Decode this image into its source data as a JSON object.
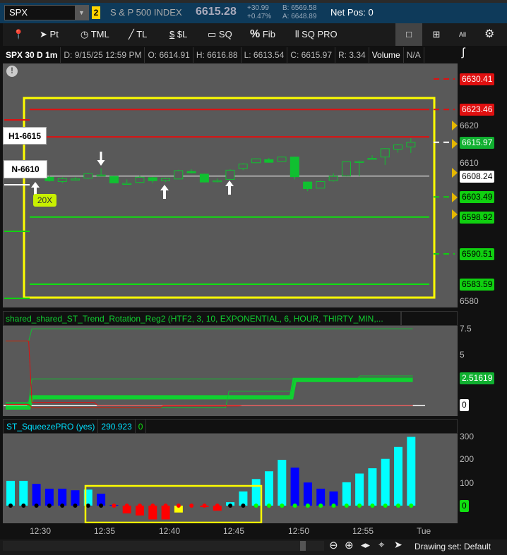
{
  "header": {
    "symbol": "SPX",
    "link_badge": "2",
    "description": "S & P 500 INDEX",
    "last": "6615.28",
    "change": "+30.99",
    "change_pct": "+0.47%",
    "bid": "B: 6569.58",
    "ask": "A: 6648.89",
    "net_pos": "Net Pos: 0"
  },
  "toolbar": {
    "pt": "Pt",
    "tml": "TML",
    "tl": "TL",
    "sl": "$L",
    "sq": "SQ",
    "fib": "Fib",
    "sqpro": "SQ PRO",
    "all": "All"
  },
  "info": {
    "title": "SPX 30 D 1m",
    "date": "D: 9/15/25 12:59 PM",
    "open": "O: 6614.91",
    "high": "H: 6616.88",
    "low": "L: 6613.54",
    "close": "C: 6615.97",
    "range": "R: 3.34",
    "volume": "Volume",
    "na": "N/A"
  },
  "price_chart": {
    "axis_ticks": [
      "6620",
      "6610",
      "6580"
    ],
    "tags": [
      {
        "v": 6630.41,
        "t": "6630.41",
        "c": "#e01010",
        "fg": "#fff"
      },
      {
        "v": 6623.46,
        "t": "6623.46",
        "c": "#e01010",
        "fg": "#fff"
      },
      {
        "v": 6615.97,
        "t": "6615.97",
        "c": "#10b030",
        "fg": "#fff"
      },
      {
        "v": 6608.24,
        "t": "6608.24",
        "c": "#ffffff",
        "fg": "#000"
      },
      {
        "v": 6603.49,
        "t": "6603.49",
        "c": "#10d010",
        "fg": "#000"
      },
      {
        "v": 6598.92,
        "t": "6598.92",
        "c": "#10d010",
        "fg": "#000"
      },
      {
        "v": 6590.51,
        "t": "6590.51",
        "c": "#10d010",
        "fg": "#000"
      },
      {
        "v": 6583.59,
        "t": "6583.59",
        "c": "#10d010",
        "fg": "#000"
      }
    ],
    "labels": {
      "h1": "H1-6615",
      "n": "N-6610",
      "zoom_badge": "20X"
    },
    "candles": [
      [
        6608,
        6607.2,
        6608.3,
        6607
      ],
      [
        6607,
        6607.7,
        6608,
        6606.6
      ],
      [
        6607.6,
        6607.6,
        6608,
        6607.3
      ],
      [
        6607.8,
        6608.8,
        6609,
        6607.6
      ],
      [
        6608.5,
        6608.5,
        6610,
        6608.2
      ],
      [
        6608.2,
        6606.7,
        6608.3,
        6606.6
      ],
      [
        6606.6,
        6606.6,
        6607.5,
        6606.5
      ],
      [
        6606.8,
        6608,
        6608.3,
        6606.6
      ],
      [
        6607.9,
        6607.2,
        6608.1,
        6606.6
      ],
      [
        6607.2,
        6607.7,
        6607.9,
        6606.9
      ],
      [
        6607.6,
        6609.5,
        6609.7,
        6607.5
      ],
      [
        6609.3,
        6609,
        6609.8,
        6608.9
      ],
      [
        6608.7,
        6606.9,
        6608.8,
        6606.8
      ],
      [
        6607.2,
        6607.2,
        6607.7,
        6606.8
      ],
      [
        6607.5,
        6609.6,
        6609.8,
        6607.4
      ],
      [
        6610,
        6611,
        6611.2,
        6609.6
      ],
      [
        6611.3,
        6612.2,
        6612.3,
        6611.2
      ],
      [
        6612,
        6611.4,
        6612.4,
        6611.3
      ],
      [
        6611.6,
        6612.6,
        6612.7,
        6611.5
      ],
      [
        6612.6,
        6608.1,
        6612.7,
        6607.5
      ],
      [
        6606.9,
        6605.4,
        6607,
        6604.8
      ],
      [
        6605.5,
        6607,
        6607.3,
        6605.4
      ],
      [
        6607.2,
        6608.2,
        6608.9,
        6607
      ],
      [
        6608.3,
        6611.5,
        6611.6,
        6608.2
      ],
      [
        6611.6,
        6611.6,
        6611.8,
        6608.2
      ],
      [
        6612.1,
        6612.3,
        6613,
        6612
      ],
      [
        6612.6,
        6614.5,
        6614.6,
        6610.8
      ],
      [
        6614.4,
        6615.4,
        6615.6,
        6613.6
      ],
      [
        6614.91,
        6615.97,
        6616.88,
        6613.54
      ]
    ],
    "levels": [
      {
        "v": 6623.46,
        "c": "#e01010"
      },
      {
        "v": 6617.2,
        "c": "#e01010"
      },
      {
        "v": 6608.24,
        "c": "#ffffff"
      },
      {
        "v": 6598.92,
        "c": "#10e010"
      },
      {
        "v": 6583.59,
        "c": "#10e010"
      }
    ]
  },
  "trend_panel": {
    "title": "shared_shared_ST_Trend_Rotation_Reg2 (HTF2, 3, 10, EXPONENTIAL, 6, HOUR, THIRTY_MIN,...",
    "axis_ticks": [
      "7.5",
      "5"
    ],
    "value_tag": "2.51619",
    "zero_tag": "0"
  },
  "squeeze_panel": {
    "title": "ST_SqueezePRO (yes)",
    "value": "290.923",
    "value2": "0",
    "axis_ticks": [
      "300",
      "200",
      "100"
    ],
    "zero_tag": "0"
  },
  "time_axis": [
    "12:30",
    "12:35",
    "12:40",
    "12:45",
    "12:50",
    "12:55",
    "Tue"
  ],
  "footer": {
    "drawing_set": "Drawing set: Default"
  },
  "chart_data": [
    {
      "type": "candlestick",
      "ylim": [
        6578,
        6633
      ],
      "x": "12:31-12:59 (1m)"
    },
    {
      "type": "line",
      "ylim": [
        -1,
        8.5
      ],
      "series": [
        {
          "color": "#10c030",
          "width": 1,
          "values": [
            6.3,
            6.3,
            7.5,
            7.5,
            7.5,
            7.5,
            7.5,
            7.5,
            7.5,
            7.5,
            7.5,
            7.5,
            7.5,
            7.5,
            7.5,
            7.5,
            7.5,
            7.5,
            7.5,
            7.5,
            7.5,
            7.5,
            7.5,
            7.5,
            7.5,
            7.5,
            7.5,
            7.5,
            7.5,
            7.5,
            7.5,
            7.5
          ]
        },
        {
          "color": "#10d030",
          "width": 6,
          "values": [
            -0.2,
            -0.2,
            0.8,
            0.8,
            0.8,
            0.8,
            0.8,
            0.8,
            0.8,
            0.8,
            0.8,
            0.8,
            0.8,
            0.8,
            0.8,
            0.8,
            0.8,
            0.8,
            0.8,
            0.8,
            0.8,
            0.8,
            2.5,
            2.5,
            2.5,
            2.5,
            2.5,
            2.5,
            2.5,
            2.5,
            2.5,
            2.5
          ]
        },
        {
          "color": "#10c030",
          "width": 1,
          "values": [
            0.3,
            0.3,
            2.6,
            2.6,
            2.6,
            2.6,
            2.6,
            2.6,
            2.6,
            2.6,
            2.6,
            2.6,
            2.6,
            2.6,
            2.6,
            2.6,
            2.6,
            2.6,
            2.6,
            2.6,
            2.6,
            2.6,
            2.6,
            2.6,
            2.6,
            2.6,
            2.6,
            2.7,
            2.7,
            2.7,
            2.7,
            2.7
          ]
        },
        {
          "color": "#10c030",
          "width": 1,
          "values": [
            0.2,
            0.2,
            -0.2,
            -0.2,
            -0.2,
            -0.2,
            -0.2,
            -0.2,
            -0.2,
            -0.2,
            -0.2,
            -0.2,
            -0.2,
            -0.2,
            -0.2,
            -0.2,
            -0.2,
            1.4,
            1.4,
            1.4,
            1.4,
            1.4,
            2.6,
            2.6,
            2.6,
            2.6,
            2.6,
            2.9,
            2.9,
            2.9,
            2.9,
            2.9
          ]
        },
        {
          "color": "#e01010",
          "width": 1,
          "values": [
            6.3,
            6.3,
            0.3,
            0.3,
            0.3,
            0.3,
            0.3,
            0.0,
            0.0,
            0.0,
            0.0,
            0.0,
            0.0,
            0.0,
            0.0,
            0.0,
            0.0,
            0.0,
            0.0,
            0.0,
            0.0,
            0.0,
            0.0,
            0.0,
            0.0,
            0.0,
            0.0,
            0.0,
            0.0,
            0.0,
            0.0,
            0.0
          ]
        },
        {
          "color": "#e01010",
          "width": 1,
          "values": [
            0.1,
            0.1,
            -0.2,
            -0.2,
            -0.2,
            -0.2,
            -0.2,
            -0.2,
            -0.2,
            -0.2,
            -0.2,
            -0.2,
            -0.05,
            -0.05,
            -0.05,
            -0.05,
            -0.05,
            -0.05,
            0.0,
            0.0,
            0.0,
            0.0,
            0.0,
            0.0,
            0.0,
            0.0,
            0.0,
            0.0,
            0.0,
            0.0,
            0.0,
            0.0
          ]
        }
      ]
    },
    {
      "type": "bar",
      "ylim": [
        -90,
        310
      ],
      "values": [
        108,
        108,
        95,
        74,
        74,
        67,
        70,
        52,
        3,
        -34,
        -43,
        -60,
        -60,
        -30,
        0,
        -6,
        -22,
        15,
        62,
        116,
        150,
        200,
        166,
        101,
        74,
        62,
        102,
        140,
        163,
        204,
        256,
        300
      ],
      "colors": [
        "#00ffff",
        "#00ffff",
        "#0000ff",
        "#0000ff",
        "#0000ff",
        "#0000ff",
        "#00ffff",
        "#0000ff",
        "#0000ff",
        "#ff0000",
        "#ff0000",
        "#ff0000",
        "#ff0000",
        "#ffff00",
        "#ff0000",
        "#ff0000",
        "#ff0000",
        "#00ffff",
        "#00ffff",
        "#00ffff",
        "#00ffff",
        "#00ffff",
        "#0000ff",
        "#0000ff",
        "#0000ff",
        "#0000ff",
        "#00ffff",
        "#00ffff",
        "#00ffff",
        "#00ffff",
        "#00ffff",
        "#00ffff"
      ],
      "dots": [
        "#000",
        "#000",
        "#000",
        "#000",
        "#000",
        "#000",
        "#000",
        "#000",
        "#f00",
        "#f00",
        "#f00",
        "#f00",
        "#f00",
        "#f00",
        "#f00",
        "#f00",
        "#f00",
        "#000",
        "#000",
        "#00ff00",
        "#00ff00",
        "#00ff00",
        "#00ff00",
        "#00ff00",
        "#00ff00",
        "#00ff00",
        "#00ff00",
        "#00ff00",
        "#00ff00",
        "#00ff00",
        "#00ff00",
        "#00ff00"
      ]
    }
  ]
}
